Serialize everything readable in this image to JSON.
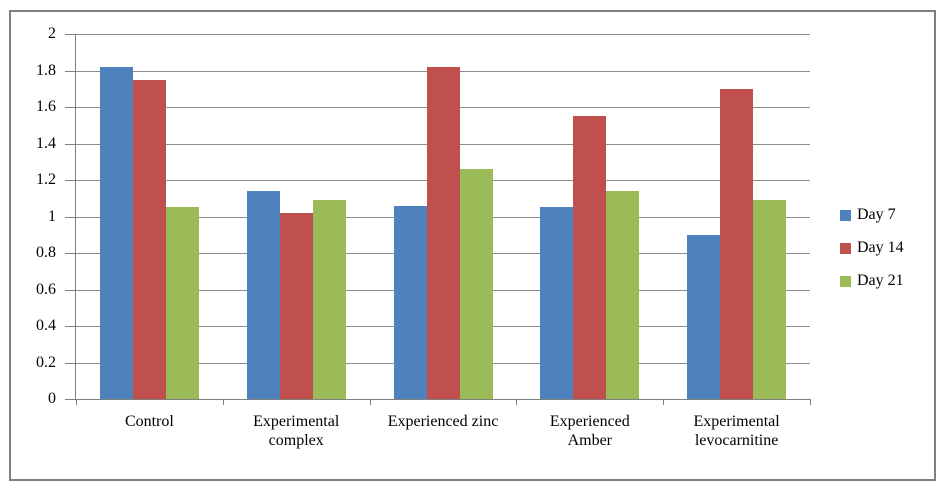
{
  "figure": {
    "background_color": "#ffffff",
    "border_color": "#808080"
  },
  "chart_data": {
    "type": "bar",
    "title": "",
    "categories": [
      "Control",
      "Experimental complex",
      "Experienced zinc",
      "Experienced Amber",
      "Experimental levocarnitine"
    ],
    "categories_wrapped": [
      [
        "Control"
      ],
      [
        "Experimental",
        "complex"
      ],
      [
        "Experienced zinc"
      ],
      [
        "Experienced",
        "Amber"
      ],
      [
        "Experimental",
        "levocarnitine"
      ]
    ],
    "series": [
      {
        "name": "Day 7",
        "color": "#4F81BD",
        "values": [
          1.82,
          1.14,
          1.06,
          1.05,
          0.9
        ]
      },
      {
        "name": "Day 14",
        "color": "#C0504D",
        "values": [
          1.75,
          1.02,
          1.82,
          1.55,
          1.7
        ]
      },
      {
        "name": "Day 21",
        "color": "#9BBB59",
        "values": [
          1.05,
          1.09,
          1.26,
          1.14,
          1.09
        ]
      }
    ],
    "xlabel": "",
    "ylabel": "",
    "ylim": [
      0,
      2
    ],
    "yticks": [
      "0",
      "0.2",
      "0.4",
      "0.6",
      "0.8",
      "1",
      "1.2",
      "1.4",
      "1.6",
      "1.8",
      "2"
    ],
    "grid": true,
    "gridline_color": "#8C8C8C",
    "axis_color": "#808080",
    "text_color": "#000000",
    "legend_position": "right-middle"
  }
}
